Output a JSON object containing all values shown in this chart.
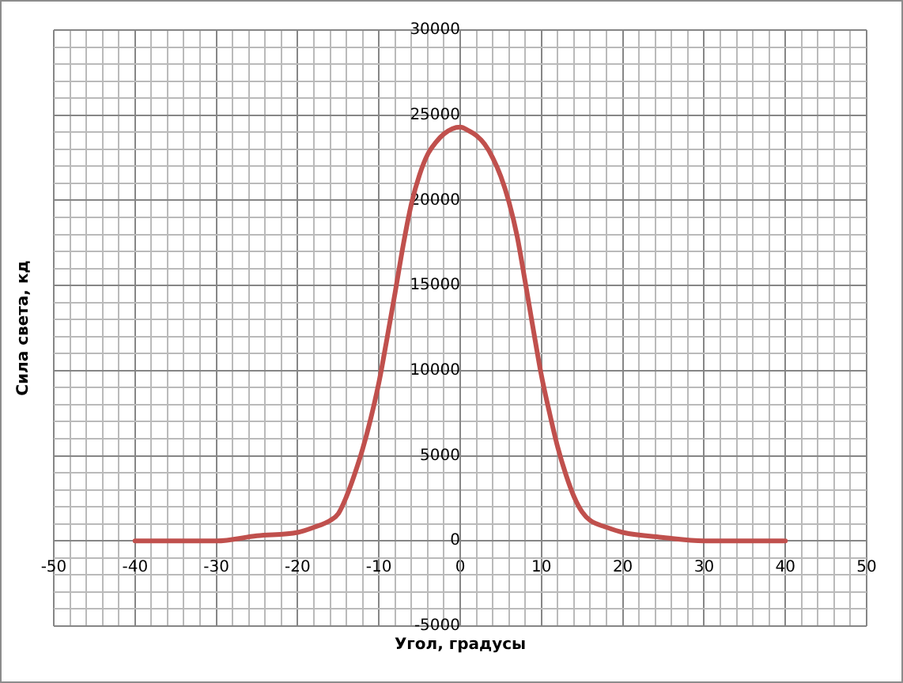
{
  "chart_data": {
    "type": "line",
    "xlabel": "Угол, градусы",
    "ylabel": "Сила света, кд",
    "x": [
      -40,
      -35,
      -30,
      -25,
      -20,
      -18,
      -16,
      -15,
      -14,
      -13,
      -12,
      -11,
      -10,
      -9,
      -8,
      -7,
      -6,
      -5,
      -4,
      -3,
      -2,
      -1,
      0,
      1,
      2,
      3,
      4,
      5,
      6,
      7,
      8,
      9,
      10,
      11,
      12,
      13,
      14,
      15,
      16,
      18,
      20,
      25,
      30,
      35,
      40
    ],
    "series": [
      {
        "color": "#c0504d",
        "values": [
          0,
          0,
          0,
          300,
          500,
          800,
          1200,
          1600,
          2600,
          3900,
          5400,
          7200,
          9300,
          11900,
          14600,
          17400,
          19800,
          21500,
          22700,
          23400,
          23900,
          24200,
          24300,
          24100,
          23800,
          23300,
          22500,
          21400,
          19900,
          17900,
          15200,
          12400,
          9700,
          7500,
          5500,
          3900,
          2600,
          1700,
          1200,
          800,
          500,
          200,
          0,
          0,
          0
        ]
      }
    ],
    "xlim": [
      -50,
      50
    ],
    "ylim": [
      -5000,
      30000
    ],
    "xticks": [
      -50,
      {
        "value": -48,
        "label": null
      },
      {
        "value": -46,
        "label": null
      },
      {
        "value": -44,
        "label": null
      },
      {
        "value": -42,
        "label": null
      },
      -40,
      {
        "value": -38,
        "label": null
      },
      {
        "value": -36,
        "label": null
      },
      {
        "value": -34,
        "label": null
      },
      {
        "value": -32,
        "label": null
      },
      -30,
      {
        "value": -28,
        "label": null
      },
      {
        "value": -26,
        "label": null
      },
      {
        "value": -24,
        "label": null
      },
      {
        "value": -22,
        "label": null
      },
      -20,
      {
        "value": -18,
        "label": null
      },
      {
        "value": -16,
        "label": null
      },
      {
        "value": -14,
        "label": null
      },
      {
        "value": -12,
        "label": null
      },
      -10,
      {
        "value": -8,
        "label": null
      },
      {
        "value": -6,
        "label": null
      },
      {
        "value": -4,
        "label": null
      },
      {
        "value": -2,
        "label": null
      },
      0,
      {
        "value": 2,
        "label": null
      },
      {
        "value": 4,
        "label": null
      },
      {
        "value": 6,
        "label": null
      },
      {
        "value": 8,
        "label": null
      },
      10,
      {
        "value": 12,
        "label": null
      },
      {
        "value": 14,
        "label": null
      },
      {
        "value": 16,
        "label": null
      },
      {
        "value": 18,
        "label": null
      },
      20,
      {
        "value": 22,
        "label": null
      },
      {
        "value": 24,
        "label": null
      },
      {
        "value": 26,
        "label": null
      },
      {
        "value": 28,
        "label": null
      },
      30,
      {
        "value": 32,
        "label": null
      },
      {
        "value": 34,
        "label": null
      },
      {
        "value": 36,
        "label": null
      },
      {
        "value": 38,
        "label": null
      },
      40,
      {
        "value": 42,
        "label": null
      },
      {
        "value": 44,
        "label": null
      },
      {
        "value": 46,
        "label": null
      },
      {
        "value": 48,
        "label": null
      },
      50
    ],
    "yticks": [
      -5000,
      {
        "value": -4000,
        "label": null
      },
      {
        "value": -3000,
        "label": null
      },
      {
        "value": -2000,
        "label": null
      },
      {
        "value": -1000,
        "label": null
      },
      0,
      {
        "value": 1000,
        "label": null
      },
      {
        "value": 2000,
        "label": null
      },
      {
        "value": 3000,
        "label": null
      },
      {
        "value": 4000,
        "label": null
      },
      5000,
      {
        "value": 6000,
        "label": null
      },
      {
        "value": 7000,
        "label": null
      },
      {
        "value": 8000,
        "label": null
      },
      {
        "value": 9000,
        "label": null
      },
      10000,
      {
        "value": 11000,
        "label": null
      },
      {
        "value": 12000,
        "label": null
      },
      {
        "value": 13000,
        "label": null
      },
      {
        "value": 14000,
        "label": null
      },
      15000,
      {
        "value": 16000,
        "label": null
      },
      {
        "value": 17000,
        "label": null
      },
      {
        "value": 18000,
        "label": null
      },
      {
        "value": 19000,
        "label": null
      },
      20000,
      {
        "value": 21000,
        "label": null
      },
      {
        "value": 22000,
        "label": null
      },
      {
        "value": 23000,
        "label": null
      },
      {
        "value": 24000,
        "label": null
      },
      25000,
      {
        "value": 26000,
        "label": null
      },
      {
        "value": 27000,
        "label": null
      },
      {
        "value": 28000,
        "label": null
      },
      {
        "value": 29000,
        "label": null
      },
      30000
    ],
    "grid": true
  }
}
